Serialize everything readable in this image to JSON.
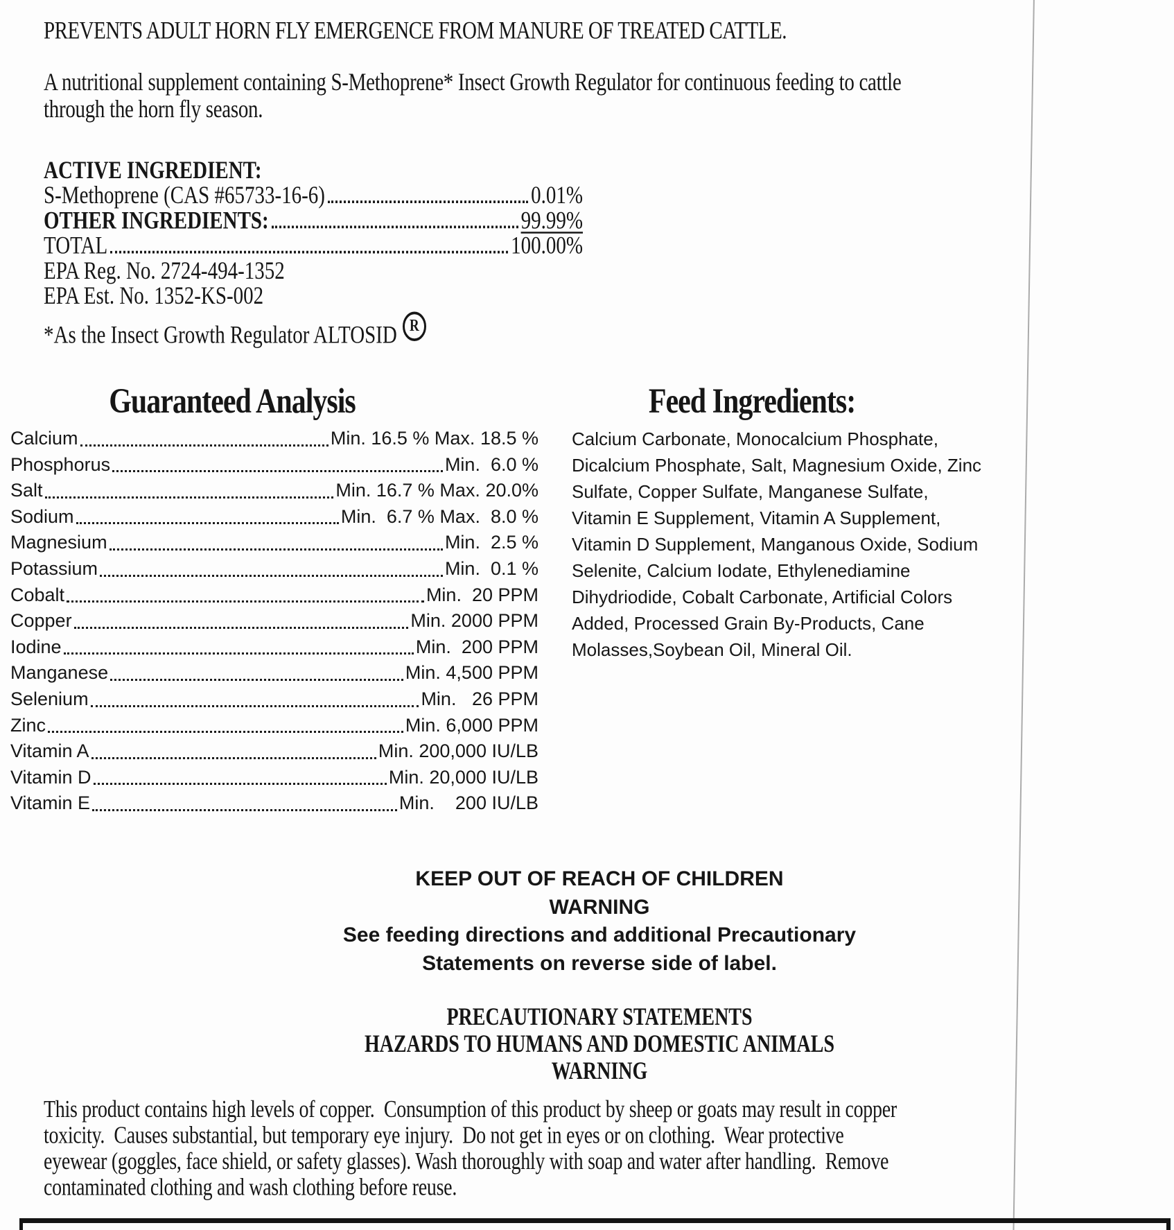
{
  "colors": {
    "text": "#161616",
    "background": "#fdfdfd"
  },
  "header": {
    "title": "PREVENTS ADULT HORN FLY EMERGENCE FROM MANURE OF TREATED CATTLE.",
    "intro": "A nutritional supplement containing S-Methoprene* Insect Growth Regulator for continuous feeding to cattle\nthrough the horn fly season."
  },
  "active_ingredient": {
    "heading": "ACTIVE INGREDIENT:",
    "rows": [
      {
        "label": "S-Methoprene (CAS #65733-16-6)",
        "value": "0.01%"
      },
      {
        "label": "OTHER INGREDIENTS:",
        "value": "99.99%"
      },
      {
        "label": "TOTAL",
        "value": "100.00%"
      }
    ],
    "epa_reg": "EPA Reg. No. 2724-494-1352",
    "epa_est": "EPA Est. No. 1352-KS-002",
    "footnote": "*As the Insect Growth Regulator ALTOSID",
    "registered_mark": "R"
  },
  "guaranteed_analysis": {
    "heading": "Guaranteed Analysis",
    "rows": [
      {
        "label": "Calcium",
        "value": "Min. 16.5 % Max. 18.5 %"
      },
      {
        "label": "Phosphorus",
        "value": "Min.  6.0 %"
      },
      {
        "label": "Salt",
        "value": "Min. 16.7 % Max. 20.0%"
      },
      {
        "label": "Sodium",
        "value": "Min.  6.7 % Max.  8.0 %"
      },
      {
        "label": "Magnesium",
        "value": "Min.  2.5 %"
      },
      {
        "label": "Potassium",
        "value": "Min.  0.1 %"
      },
      {
        "label": "Cobalt",
        "value": "Min.  20 PPM"
      },
      {
        "label": "Copper",
        "value": "Min. 2000 PPM"
      },
      {
        "label": "Iodine",
        "value": "Min.  200 PPM"
      },
      {
        "label": "Manganese",
        "value": "Min. 4,500 PPM"
      },
      {
        "label": "Selenium",
        "value": "Min.   26 PPM"
      },
      {
        "label": "Zinc",
        "value": "Min. 6,000 PPM"
      },
      {
        "label": "Vitamin A",
        "value": "Min. 200,000 IU/LB"
      },
      {
        "label": "Vitamin D",
        "value": "Min. 20,000 IU/LB"
      },
      {
        "label": "Vitamin E",
        "value": "Min.    200 IU/LB"
      }
    ]
  },
  "feed_ingredients": {
    "heading": "Feed Ingredients:",
    "body": "Calcium Carbonate, Monocalcium Phosphate,\nDicalcium Phosphate, Salt, Magnesium Oxide, Zinc\nSulfate, Copper Sulfate, Manganese Sulfate,\nVitamin E Supplement, Vitamin A Supplement,\nVitamin D Supplement, Manganous Oxide, Sodium\nSelenite, Calcium Iodate, Ethylenediamine\nDihydriodide, Cobalt Carbonate, Artificial Colors\nAdded, Processed Grain By-Products, Cane\nMolasses,Soybean Oil, Mineral Oil."
  },
  "child_warning": "KEEP OUT OF REACH OF CHILDREN\nWARNING\nSee feeding directions and additional Precautionary\nStatements on reverse side of label.",
  "precautionary": "PRECAUTIONARY STATEMENTS\nHAZARDS TO HUMANS AND DOMESTIC ANIMALS\nWARNING",
  "hazard_paragraph": "This product contains high levels of copper.  Consumption of this product by sheep or goats may result in copper\ntoxicity.  Causes substantial, but temporary eye injury.  Do not get in eyes or on clothing.  Wear protective\neyewear (goggles, face shield, or safety glasses). Wash thoroughly with soap and water after handling.  Remove\ncontaminated clothing and wash clothing before reuse."
}
